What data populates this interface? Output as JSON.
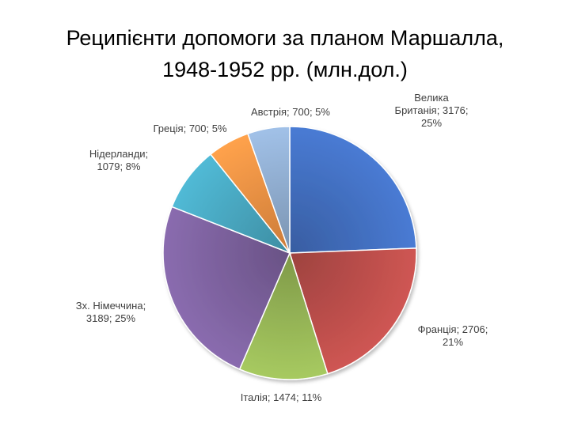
{
  "chart_data": {
    "type": "pie",
    "title_lines": [
      "Реципієнти допомоги за планом Маршалла,",
      "1948-1952 рр. (млн.дол.)"
    ],
    "slices": [
      {
        "name": "Велика Британія",
        "value": 3176,
        "pct": "25%",
        "color": "#4472C4",
        "label_lines": [
          "Велика",
          "Британія; 3176;",
          "25%"
        ]
      },
      {
        "name": "Франція",
        "value": 2706,
        "pct": "21%",
        "color": "#C0504D",
        "label_lines": [
          "Франція; 2706;",
          "21%"
        ]
      },
      {
        "name": "Італія",
        "value": 1474,
        "pct": "11%",
        "color": "#9BBB59",
        "label_lines": [
          "Італія; 1474; 11%"
        ]
      },
      {
        "name": "Зх. Німеччина",
        "value": 3189,
        "pct": "25%",
        "color": "#8064A2",
        "label_lines": [
          "Зх. Німеччина;",
          "3189; 25%"
        ]
      },
      {
        "name": "Нідерланди",
        "value": 1079,
        "pct": "8%",
        "color": "#4BACC6",
        "label_lines": [
          "Нідерланди;",
          "1079; 8%"
        ]
      },
      {
        "name": "Греція",
        "value": 700,
        "pct": "5%",
        "color": "#F79646",
        "label_lines": [
          "Греція; 700; 5%"
        ]
      },
      {
        "name": "Австрія",
        "value": 700,
        "pct": "5%",
        "color": "#95B3D7",
        "label_lines": [
          "Австрія; 700; 5%"
        ]
      }
    ],
    "legend": "none"
  }
}
